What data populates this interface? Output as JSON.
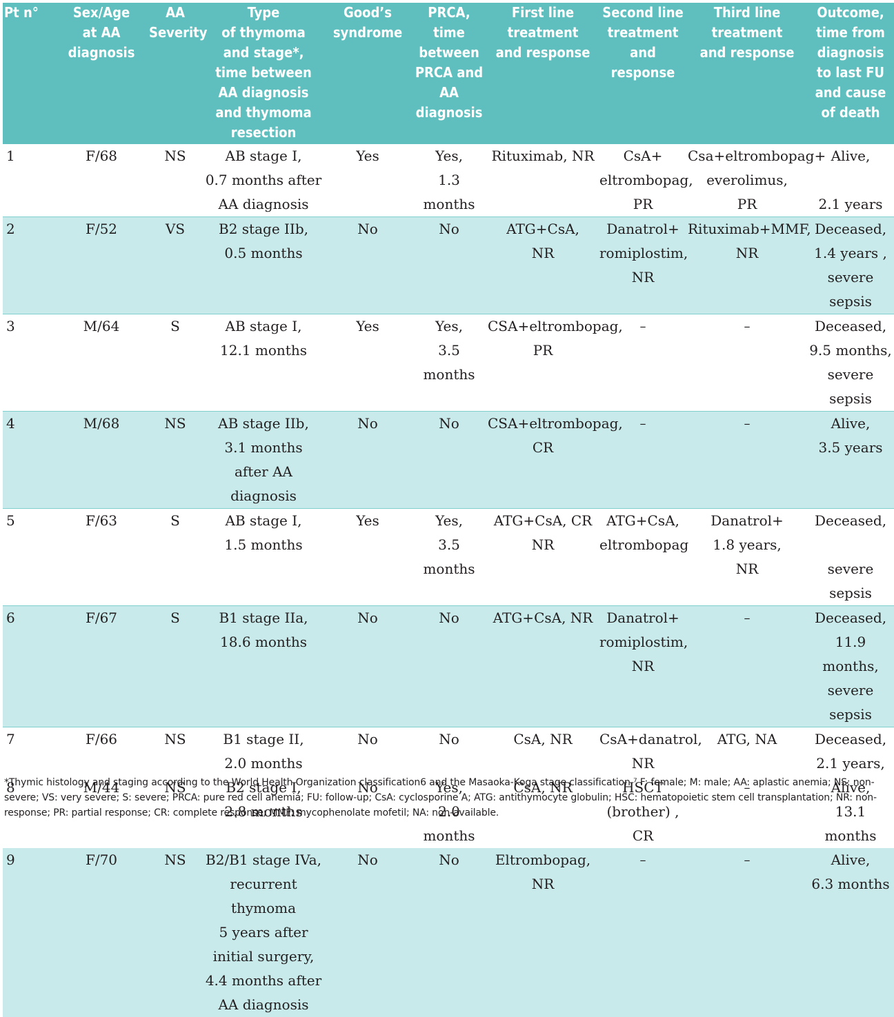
{
  "table": {
    "headers": [
      "Pt n°",
      "Sex/Age\nat AA\ndiagnosis",
      "AA\nSeverity",
      "Type\nof thymoma\nand stage*,\ntime between\nAA diagnosis\nand thymoma\nresection",
      "Good’s\nsyndrome",
      "PRCA,\ntime\nbetween\nPRCA and AA\ndiagnosis",
      "First line\ntreatment\nand response",
      "Second line\ntreatment\nand response",
      "Third line\ntreatment\nand response",
      "Outcome,\ntime from\ndiagnosis\nto last FU\nand cause\nof death"
    ],
    "rows": [
      [
        "1",
        "F/68",
        "NS",
        "AB stage I,\n0.7 months after\nAA diagnosis",
        "Yes",
        "Yes,\n1.3 months",
        "Rituximab, NR",
        "CsA+\neltrombopag,\nPR",
        "Csa+eltrombopag+\neverolimus,\nPR",
        "Alive,\n\n2.1 years"
      ],
      [
        "2",
        "F/52",
        "VS",
        "B2 stage IIb,\n0.5 months",
        "No",
        "No",
        "ATG+CsA,\nNR",
        "Danatrol+\nromiplostim,\nNR",
        "Rituximab+MMF,\nNR",
        "Deceased,\n1.4 years ,\nsevere sepsis"
      ],
      [
        "3",
        "M/64",
        "S",
        "AB stage I,\n12.1 months",
        "Yes",
        "Yes,\n3.5 months",
        "CSA+eltrombopag,\nPR",
        "–",
        "–",
        "Deceased,\n9.5 months,\nsevere sepsis"
      ],
      [
        "4",
        "M/68",
        "NS",
        "AB stage IIb,\n3.1 months\nafter AA diagnosis",
        "No",
        "No",
        "CSA+eltrombopag,\nCR",
        "–",
        "–",
        "Alive,\n3.5 years"
      ],
      [
        "5",
        "F/63",
        "S",
        "AB stage I,\n1.5 months",
        "Yes",
        "Yes,\n3.5 months",
        "ATG+CsA, CR\nNR",
        "ATG+CsA,\neltrombopag",
        "Danatrol+\n1.8 years,\nNR",
        "Deceased,\n\nsevere sepsis"
      ],
      [
        "6",
        "F/67",
        "S",
        "B1 stage IIa,\n18.6 months",
        "No",
        "No",
        "ATG+CsA, NR",
        "Danatrol+\nromiplostim, NR",
        "–",
        "Deceased,\n11.9 months,\nsevere sepsis"
      ],
      [
        "7",
        "F/66",
        "NS",
        "B1 stage II,\n2.0 months",
        "No",
        "No",
        "CsA, NR",
        "CsA+danatrol,\nNR",
        "ATG, NA",
        "Deceased,\n2.1 years,"
      ],
      [
        "8",
        "M/44",
        "NS",
        "B2 stage I,\n2.8 months",
        "No",
        "Yes,\n2.0 months",
        "CsA, NR",
        "HSCT\n(brother) , CR",
        "–",
        "Alive,\n13.1 months"
      ],
      [
        "9",
        "F/70",
        "NS",
        "B2/B1 stage IVa,\nrecurrent thymoma\n5 years after initial surgery,\n4.4 months after AA diagnosis",
        "No",
        "No",
        "Eltrombopag,\nNR",
        "–",
        "–",
        "Alive,\n6.3 months"
      ]
    ]
  },
  "footnote": "*Thymic histology and staging according to the World Health Organization classification6 and the Masaoka-Koga stage classification.⁷ F: female; M: male; AA: aplastic anemia; NS: non-severe; VS: very severe; S: severe; PRCA: pure red cell anemia; FU: follow-up; CsA: cyclosporine A; ATG: antithymocyte globulin; HSC: hematopoietic stem cell transplantation; NR: non-response; PR: partial response; CR: complete response; MMF: mycophenolate mofetil; NA: non-available."
}
